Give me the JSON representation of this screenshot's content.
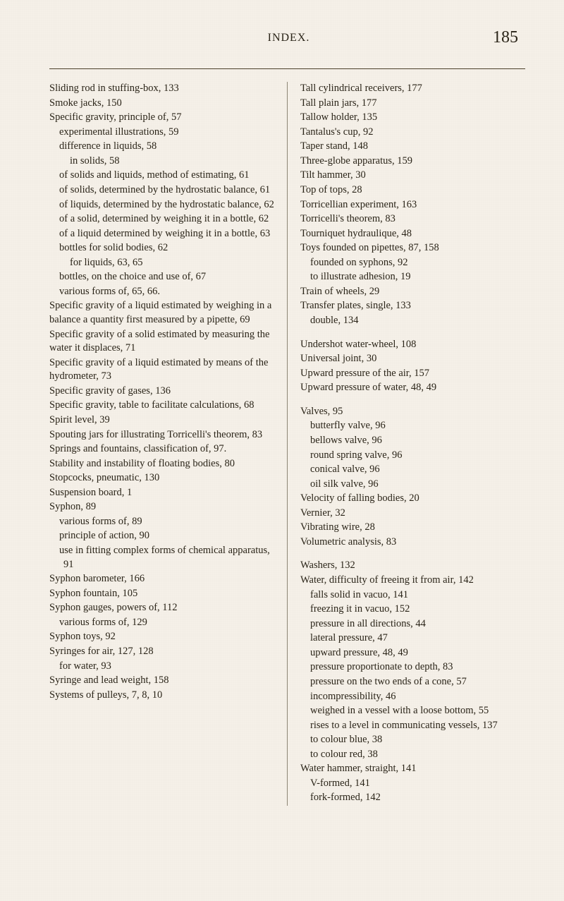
{
  "header": {
    "title": "INDEX.",
    "page_number": "185"
  },
  "left_column": [
    {
      "text": "Sliding rod in stuffing-box, 133",
      "class": "main-entry"
    },
    {
      "text": "Smoke jacks, 150",
      "class": "main-entry"
    },
    {
      "text": "Specific gravity, principle of, 57",
      "class": "main-entry"
    },
    {
      "text": "experimental illustrations, 59",
      "class": "sub-entry"
    },
    {
      "text": "difference in liquids, 58",
      "class": "sub-entry"
    },
    {
      "text": "in solids, 58",
      "class": "sub-entry-2"
    },
    {
      "text": "of solids and liquids, method of estimating, 61",
      "class": "sub-entry"
    },
    {
      "text": "of solids, determined by the hydrostatic balance, 61",
      "class": "sub-entry"
    },
    {
      "text": "of liquids, determined by the hydrostatic balance, 62",
      "class": "sub-entry"
    },
    {
      "text": "of a solid, determined by weighing it in a bottle, 62",
      "class": "sub-entry"
    },
    {
      "text": "of a liquid determined by weighing it in a bottle, 63",
      "class": "sub-entry"
    },
    {
      "text": "bottles for solid bodies, 62",
      "class": "sub-entry"
    },
    {
      "text": "for liquids, 63, 65",
      "class": "sub-entry-2"
    },
    {
      "text": "bottles, on the choice and use of, 67",
      "class": "sub-entry"
    },
    {
      "text": "various forms of, 65, 66.",
      "class": "sub-entry"
    },
    {
      "text": "Specific gravity of a liquid estimated by weighing in a balance a quantity first measured by a pipette, 69",
      "class": "main-entry"
    },
    {
      "text": "Specific gravity of a solid estimated by measuring the water it displaces, 71",
      "class": "main-entry"
    },
    {
      "text": "Specific gravity of a liquid estimated by means of the hydrometer, 73",
      "class": "main-entry"
    },
    {
      "text": "Specific gravity of gases, 136",
      "class": "main-entry"
    },
    {
      "text": "Specific gravity, table to facilitate calculations, 68",
      "class": "main-entry"
    },
    {
      "text": "Spirit level, 39",
      "class": "main-entry"
    },
    {
      "text": "Spouting jars for illustrating Torricelli's theorem, 83",
      "class": "main-entry"
    },
    {
      "text": "Springs and fountains, classification of, 97.",
      "class": "main-entry"
    },
    {
      "text": "Stability and instability of floating bodies, 80",
      "class": "main-entry"
    },
    {
      "text": "Stopcocks, pneumatic, 130",
      "class": "main-entry"
    },
    {
      "text": "Suspension board, 1",
      "class": "main-entry"
    },
    {
      "text": "Syphon, 89",
      "class": "main-entry"
    },
    {
      "text": "various forms of, 89",
      "class": "sub-entry"
    },
    {
      "text": "principle of action, 90",
      "class": "sub-entry"
    },
    {
      "text": "use in fitting complex forms of chemical apparatus, 91",
      "class": "sub-entry"
    },
    {
      "text": "Syphon barometer, 166",
      "class": "main-entry"
    },
    {
      "text": "Syphon fountain, 105",
      "class": "main-entry"
    },
    {
      "text": "Syphon gauges, powers of, 112",
      "class": "main-entry"
    },
    {
      "text": "various forms of, 129",
      "class": "sub-entry"
    },
    {
      "text": "Syphon toys, 92",
      "class": "main-entry"
    },
    {
      "text": "Syringes for air, 127, 128",
      "class": "main-entry"
    },
    {
      "text": "for water, 93",
      "class": "sub-entry"
    },
    {
      "text": "Syringe and lead weight, 158",
      "class": "main-entry"
    },
    {
      "text": "Systems of pulleys, 7, 8, 10",
      "class": "main-entry"
    }
  ],
  "right_column": [
    {
      "text": "Tall cylindrical receivers, 177",
      "class": "main-entry"
    },
    {
      "text": "Tall plain jars, 177",
      "class": "main-entry"
    },
    {
      "text": "Tallow holder, 135",
      "class": "main-entry"
    },
    {
      "text": "Tantalus's cup, 92",
      "class": "main-entry"
    },
    {
      "text": "Taper stand, 148",
      "class": "main-entry"
    },
    {
      "text": "Three-globe apparatus, 159",
      "class": "main-entry"
    },
    {
      "text": "Tilt hammer, 30",
      "class": "main-entry"
    },
    {
      "text": "Top of tops, 28",
      "class": "main-entry"
    },
    {
      "text": "Torricellian experiment, 163",
      "class": "main-entry"
    },
    {
      "text": "Torricelli's theorem, 83",
      "class": "main-entry"
    },
    {
      "text": "Tourniquet hydraulique, 48",
      "class": "main-entry"
    },
    {
      "text": "Toys founded on pipettes, 87, 158",
      "class": "main-entry"
    },
    {
      "text": "founded on syphons, 92",
      "class": "sub-entry"
    },
    {
      "text": "to illustrate adhesion, 19",
      "class": "sub-entry"
    },
    {
      "text": "Train of wheels, 29",
      "class": "main-entry"
    },
    {
      "text": "Transfer plates, single, 133",
      "class": "main-entry"
    },
    {
      "text": "double, 134",
      "class": "sub-entry"
    },
    {
      "text": "Undershot water-wheel, 108",
      "class": "main-entry para-break"
    },
    {
      "text": "Universal joint, 30",
      "class": "main-entry"
    },
    {
      "text": "Upward pressure of the air, 157",
      "class": "main-entry"
    },
    {
      "text": "Upward pressure of water, 48, 49",
      "class": "main-entry"
    },
    {
      "text": "Valves, 95",
      "class": "main-entry para-break"
    },
    {
      "text": "butterfly valve, 96",
      "class": "sub-entry"
    },
    {
      "text": "bellows valve, 96",
      "class": "sub-entry"
    },
    {
      "text": "round spring valve, 96",
      "class": "sub-entry"
    },
    {
      "text": "conical valve, 96",
      "class": "sub-entry"
    },
    {
      "text": "oil silk valve, 96",
      "class": "sub-entry"
    },
    {
      "text": "Velocity of falling bodies, 20",
      "class": "main-entry"
    },
    {
      "text": "Vernier, 32",
      "class": "main-entry"
    },
    {
      "text": "Vibrating wire, 28",
      "class": "main-entry"
    },
    {
      "text": "Volumetric analysis, 83",
      "class": "main-entry"
    },
    {
      "text": "Washers, 132",
      "class": "main-entry para-break"
    },
    {
      "text": "Water, difficulty of freeing it from air, 142",
      "class": "main-entry"
    },
    {
      "text": "falls solid in vacuo, 141",
      "class": "sub-entry"
    },
    {
      "text": "freezing it in vacuo, 152",
      "class": "sub-entry"
    },
    {
      "text": "pressure in all directions, 44",
      "class": "sub-entry"
    },
    {
      "text": "lateral pressure, 47",
      "class": "sub-entry"
    },
    {
      "text": "upward pressure, 48, 49",
      "class": "sub-entry"
    },
    {
      "text": "pressure proportionate to depth, 83",
      "class": "sub-entry"
    },
    {
      "text": "pressure on the two ends of a cone, 57",
      "class": "sub-entry"
    },
    {
      "text": "incompressibility, 46",
      "class": "sub-entry"
    },
    {
      "text": "weighed in a vessel with a loose bottom, 55",
      "class": "sub-entry"
    },
    {
      "text": "rises to a level in communicating vessels, 137",
      "class": "sub-entry"
    },
    {
      "text": "to colour blue, 38",
      "class": "sub-entry"
    },
    {
      "text": "to colour red, 38",
      "class": "sub-entry"
    },
    {
      "text": "Water hammer, straight, 141",
      "class": "main-entry"
    },
    {
      "text": "V-formed, 141",
      "class": "sub-entry"
    },
    {
      "text": "fork-formed, 142",
      "class": "sub-entry"
    }
  ]
}
